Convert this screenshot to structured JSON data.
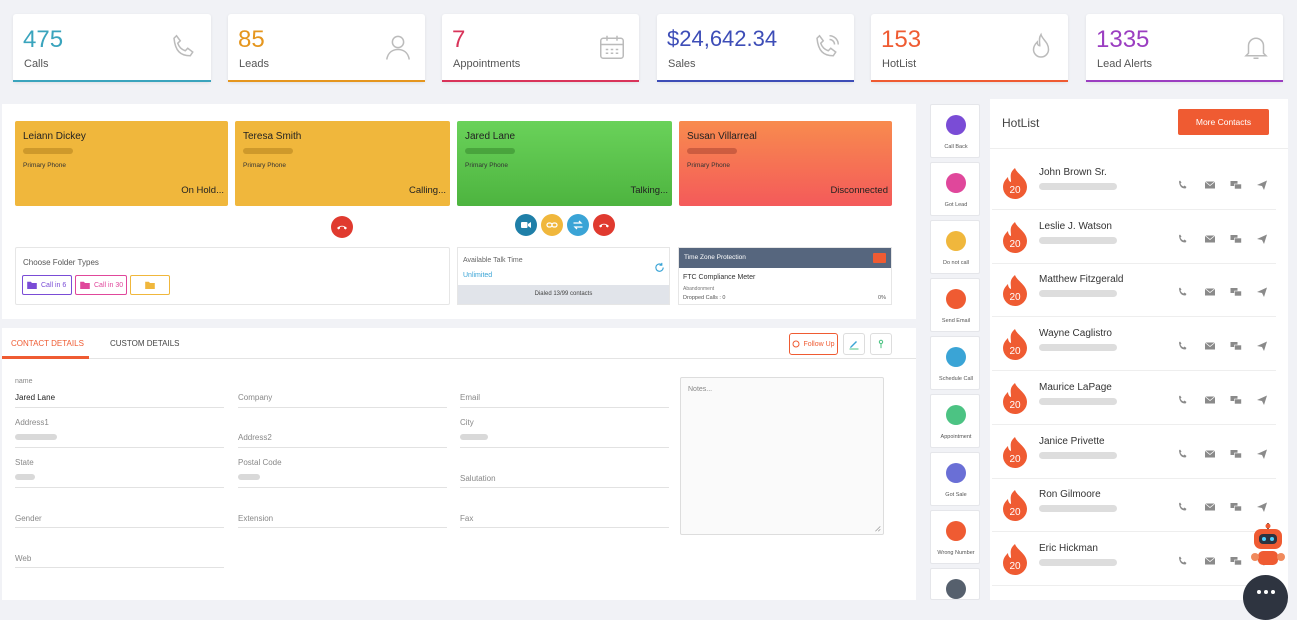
{
  "stats": [
    {
      "value": "475",
      "label": "Calls",
      "color": "#3aa4bd",
      "icon": "phone-icon"
    },
    {
      "value": "85",
      "label": "Leads",
      "color": "#e5961e",
      "icon": "user-icon"
    },
    {
      "value": "7",
      "label": "Appointments",
      "color": "#d9345a",
      "icon": "calendar-icon"
    },
    {
      "value": "$24,642.34",
      "label": "Sales",
      "color": "#3d4db7",
      "icon": "phone-callback-icon"
    },
    {
      "value": "153",
      "label": "HotList",
      "color": "#ef5b32",
      "icon": "flame-icon"
    },
    {
      "value": "1335",
      "label": "Lead Alerts",
      "color": "#9b3ec1",
      "icon": "bell-icon"
    }
  ],
  "lines": [
    {
      "name": "Leiann Dickey",
      "phone_label": "Primary Phone",
      "status": "On Hold...",
      "color": "#f0b73c"
    },
    {
      "name": "Teresa Smith",
      "phone_label": "Primary Phone",
      "status": "Calling...",
      "color": "#f0b73c"
    },
    {
      "name": "Jared Lane",
      "phone_label": "Primary Phone",
      "status": "Talking...",
      "color": "#5cc24d"
    },
    {
      "name": "Susan Villarreal",
      "phone_label": "Primary Phone",
      "status": "Disconnected",
      "color": "#f6624f"
    }
  ],
  "folders": {
    "title": "Choose Folder Types",
    "items": [
      "Call in 6",
      "Call in 30"
    ]
  },
  "talk_time": {
    "title": "Available Talk Time",
    "value": "Unlimited",
    "dialed": "Dialed 13/99 contacts"
  },
  "tz": {
    "title": "Time Zone Protection",
    "meter": "FTC Compliance Meter",
    "abandon": "Abandonment",
    "dropped": "Dropped Calls : 0",
    "pct": "0%"
  },
  "tabs": {
    "contact": "CONTACT DETAILS",
    "custom": "CUSTOM DETAILS",
    "follow_up": "Follow Up"
  },
  "form": {
    "name_label": "name",
    "name_value": "Jared Lane",
    "company": "Company",
    "email": "Email",
    "address1": "Address1",
    "address2": "Address2",
    "city": "City",
    "state": "State",
    "postal": "Postal Code",
    "salutation": "Salutation",
    "gender": "Gender",
    "extension": "Extension",
    "fax": "Fax",
    "web": "Web",
    "notes_placeholder": "Notes..."
  },
  "side_actions": [
    {
      "label": "Call Back",
      "color": "#7a4cd6"
    },
    {
      "label": "Got Lead",
      "color": "#e0479b"
    },
    {
      "label": "Do not call",
      "color": "#f0b73c"
    },
    {
      "label": "Send Email",
      "color": "#ef5b32"
    },
    {
      "label": "Schedule Call",
      "color": "#3aa4d6"
    },
    {
      "label": "Appointment",
      "color": "#4cc383"
    },
    {
      "label": "Got Sale",
      "color": "#6a6fd6"
    },
    {
      "label": "Wrong Number",
      "color": "#ef5b32"
    },
    {
      "label": "",
      "color": "#56606d"
    }
  ],
  "hotlist": {
    "title": "HotList",
    "more_button": "More Contacts",
    "badge": "20",
    "contacts": [
      "John Brown Sr.",
      "Leslie J. Watson",
      "Matthew Fitzgerald",
      "Wayne Caglistro",
      "Maurice LaPage",
      "Janice Privette",
      "Ron Gilmoore",
      "Eric Hickman"
    ]
  },
  "colors": {
    "accent": "#ef5b32",
    "red_btn": "#e03a2f",
    "video": "#1f7fa8",
    "link": "#f0b73c",
    "transfer": "#3aa4d6"
  }
}
